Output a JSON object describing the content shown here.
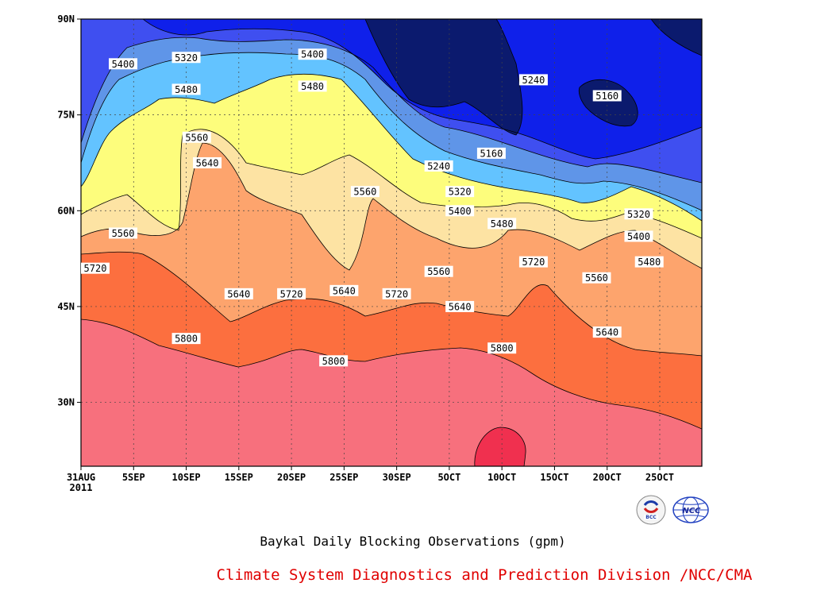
{
  "chart_data": {
    "type": "contour",
    "title": "Baykal Daily Blocking Observations (gpm)",
    "credit": "Climate System Diagnostics and Prediction Division /NCC/CMA",
    "x_axis": {
      "ticks": [
        "31AUG",
        "5SEP",
        "10SEP",
        "15SEP",
        "20SEP",
        "25SEP",
        "30SEP",
        "5OCT",
        "10OCT",
        "15OCT",
        "20OCT",
        "25OCT"
      ],
      "year_label": "2011",
      "range": [
        "2011-08-31",
        "2011-10-29"
      ]
    },
    "y_axis": {
      "ticks": [
        "30N",
        "45N",
        "60N",
        "75N",
        "90N"
      ],
      "tick_values": [
        30,
        45,
        60,
        75,
        90
      ],
      "range": [
        20,
        90
      ]
    },
    "grid": "dotted",
    "contour_levels": [
      5160,
      5240,
      5320,
      5400,
      5480,
      5560,
      5640,
      5720,
      5800,
      5880
    ],
    "level_colors": {
      "below_5160": "#0b1a6e",
      "5160_5240": "#0f20ea",
      "5240_5320": "#3f4ff0",
      "5320_5400": "#5f95e8",
      "5400_5480": "#63c3ff",
      "5480_5560": "#fdfd7c",
      "5560_5640": "#fde3a3",
      "5640_5720": "#fda46d",
      "5720_5800": "#fc6f3f",
      "5800_5880": "#f7707d",
      "above_5880": "#f0304f"
    },
    "contour_labels": [
      {
        "value": "5320",
        "date": "09-10",
        "lat": 84
      },
      {
        "value": "5400",
        "date": "09-04",
        "lat": 83
      },
      {
        "value": "5400",
        "date": "09-22",
        "lat": 84.5
      },
      {
        "value": "5480",
        "date": "09-10",
        "lat": 79
      },
      {
        "value": "5480",
        "date": "09-22",
        "lat": 79.5
      },
      {
        "value": "5560",
        "date": "09-11",
        "lat": 71.5
      },
      {
        "value": "5640",
        "date": "09-12",
        "lat": 67.5
      },
      {
        "value": "5560",
        "date": "09-27",
        "lat": 63
      },
      {
        "value": "5560",
        "date": "09-04",
        "lat": 56.5
      },
      {
        "value": "5720",
        "date": "08-31",
        "lat": 51
      },
      {
        "value": "5640",
        "date": "09-15",
        "lat": 47
      },
      {
        "value": "5720",
        "date": "09-20",
        "lat": 47
      },
      {
        "value": "5640",
        "date": "09-25",
        "lat": 47.5
      },
      {
        "value": "5720",
        "date": "09-30",
        "lat": 47
      },
      {
        "value": "5800",
        "date": "09-10",
        "lat": 40
      },
      {
        "value": "5800",
        "date": "09-24",
        "lat": 36.5
      },
      {
        "value": "5800",
        "date": "10-10",
        "lat": 38.5
      },
      {
        "value": "5240",
        "date": "10-04",
        "lat": 67
      },
      {
        "value": "5160",
        "date": "10-09",
        "lat": 69
      },
      {
        "value": "5320",
        "date": "10-06",
        "lat": 63
      },
      {
        "value": "5400",
        "date": "10-06",
        "lat": 60
      },
      {
        "value": "5480",
        "date": "10-10",
        "lat": 58
      },
      {
        "value": "5560",
        "date": "10-04",
        "lat": 50.5
      },
      {
        "value": "5640",
        "date": "10-06",
        "lat": 45
      },
      {
        "value": "5720",
        "date": "10-13",
        "lat": 52
      },
      {
        "value": "5240",
        "date": "10-13",
        "lat": 80.5
      },
      {
        "value": "5160",
        "date": "10-20",
        "lat": 78
      },
      {
        "value": "5320",
        "date": "10-23",
        "lat": 59.5
      },
      {
        "value": "5400",
        "date": "10-23",
        "lat": 56
      },
      {
        "value": "5480",
        "date": "10-24",
        "lat": 52
      },
      {
        "value": "5560",
        "date": "10-19",
        "lat": 49.5
      },
      {
        "value": "5640",
        "date": "10-20",
        "lat": 41
      }
    ]
  },
  "logos": {
    "bcc": {
      "text": "BCC",
      "icon": "bcc-logo"
    },
    "ncc": {
      "text": "NCC",
      "icon": "ncc-globe-logo"
    }
  }
}
